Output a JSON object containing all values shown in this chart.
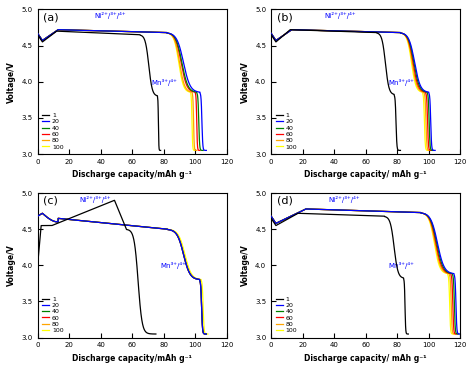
{
  "colors": [
    "black",
    "blue",
    "green",
    "red",
    "orange",
    "yellow"
  ],
  "labels": [
    "1",
    "20",
    "40",
    "60",
    "80",
    "100"
  ],
  "xlabel_a": "Discharge capacity/mAh g⁻¹",
  "xlabel_b": "Discharge capacity/ mAh g⁻¹",
  "ylabel": "Voltage/V",
  "ylim": [
    3.0,
    5.0
  ],
  "xlim": [
    0,
    120
  ],
  "yticks": [
    3.0,
    3.5,
    4.0,
    4.5,
    5.0
  ],
  "xticks": [
    0,
    20,
    40,
    60,
    80,
    100,
    120
  ],
  "ni_label": "Ni²⁺/³⁺/⁴⁺",
  "mn_label": "Mn³⁺/⁴⁺"
}
